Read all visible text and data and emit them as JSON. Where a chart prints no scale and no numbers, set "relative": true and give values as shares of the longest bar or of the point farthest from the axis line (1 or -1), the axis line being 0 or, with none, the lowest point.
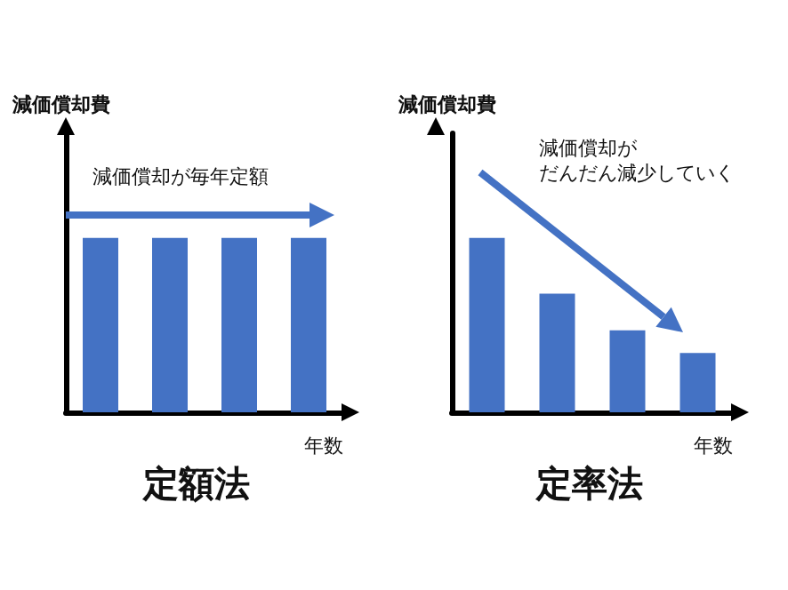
{
  "chart_data": [
    {
      "type": "bar",
      "title": "定額法",
      "ylabel": "減価償却費",
      "xlabel": "年数",
      "categories": [
        null,
        null,
        null,
        null
      ],
      "relative": true,
      "color": "#4472c4",
      "values": [
        1,
        1,
        1,
        1
      ],
      "grid": false,
      "annotations": [
        "減価償却が毎年定額"
      ]
    },
    {
      "type": "bar",
      "title": "定率法",
      "ylabel": "減価償却費",
      "xlabel": "年数",
      "categories": [
        null,
        null,
        null,
        null
      ],
      "relative": true,
      "color": "#4472c4",
      "values": [
        1,
        0.68,
        0.47,
        0.34
      ],
      "grid": false,
      "annotations": [
        "減価償却が",
        "だんだん減少していく"
      ]
    }
  ]
}
